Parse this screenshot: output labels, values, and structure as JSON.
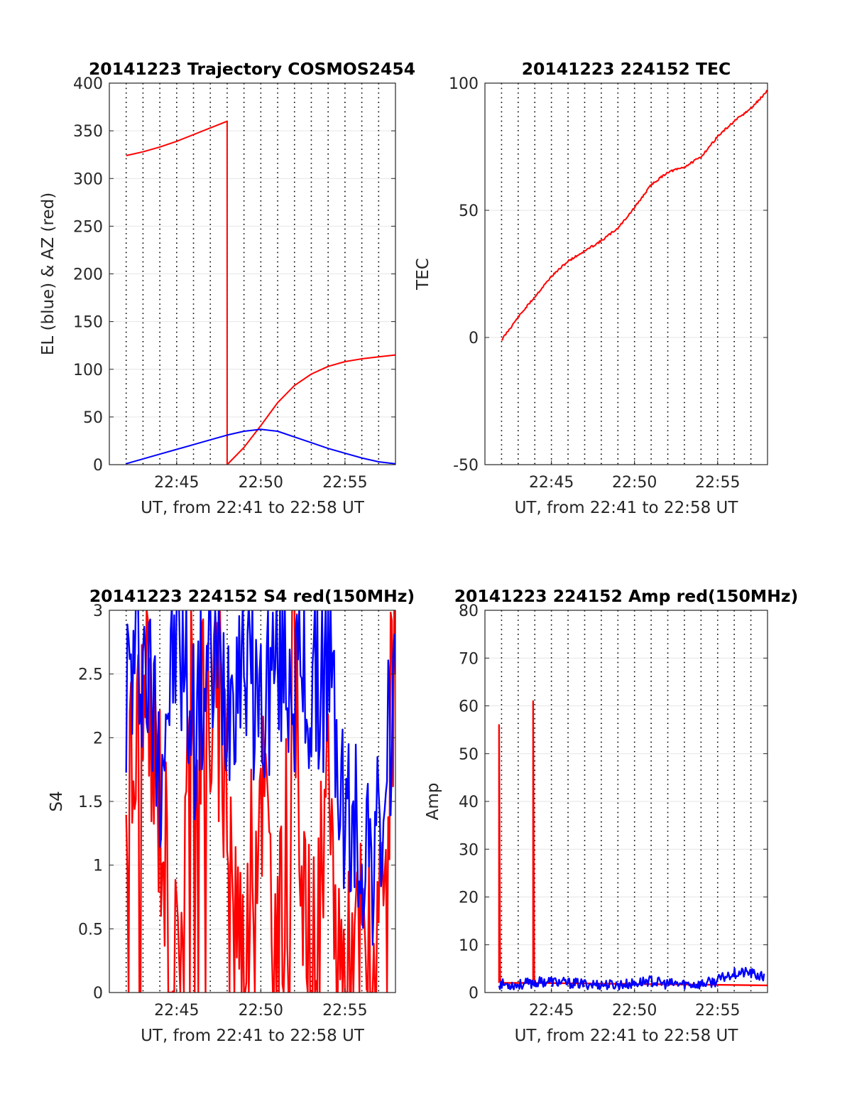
{
  "chart_data": [
    {
      "type": "line",
      "title": "20141223 Trajectory COSMOS2454",
      "xlabel": "UT, from 22:41 to 22:58 UT",
      "ylabel": "EL (blue) & AZ (red)",
      "xlim": [
        "22:41",
        "22:58"
      ],
      "xticks": [
        "22:45",
        "22:50",
        "22:55"
      ],
      "ylim": [
        0,
        400
      ],
      "yticks": [
        "0",
        "50",
        "100",
        "150",
        "200",
        "250",
        "300",
        "350",
        "400"
      ],
      "grid": true,
      "series": [
        {
          "color": "#ff0000",
          "x": [
            "22:42",
            "22:43",
            "22:44",
            "22:45",
            "22:46",
            "22:47",
            "22:48",
            "22:48",
            "22:49",
            "22:50",
            "22:51",
            "22:52",
            "22:53",
            "22:54",
            "22:55",
            "22:56",
            "22:57",
            "22:58"
          ],
          "y": [
            324,
            328,
            333,
            339,
            346,
            353,
            360,
            0,
            18,
            41,
            65,
            83,
            95,
            103,
            108,
            111,
            113,
            115
          ]
        },
        {
          "color": "#0000ff",
          "x": [
            "22:42",
            "22:43",
            "22:44",
            "22:45",
            "22:46",
            "22:47",
            "22:48",
            "22:49",
            "22:50",
            "22:51",
            "22:52",
            "22:53",
            "22:54",
            "22:55",
            "22:56",
            "22:57",
            "22:58"
          ],
          "y": [
            1,
            6,
            11,
            16,
            21,
            26,
            31,
            35,
            37,
            35,
            29,
            23,
            17,
            12,
            7,
            3,
            1
          ]
        }
      ]
    },
    {
      "type": "line",
      "title": "20141223 224152 TEC",
      "xlabel": "UT, from 22:41 to 22:58 UT",
      "ylabel": "TEC",
      "xlim": [
        "22:41",
        "22:58"
      ],
      "xticks": [
        "22:45",
        "22:50",
        "22:55"
      ],
      "ylim": [
        -50,
        100
      ],
      "yticks": [
        "-50",
        "0",
        "50",
        "100"
      ],
      "grid": true,
      "series": [
        {
          "color": "#ff0000",
          "x": [
            "22:42",
            "22:43",
            "22:44",
            "22:45",
            "22:46",
            "22:47",
            "22:48",
            "22:49",
            "22:50",
            "22:51",
            "22:52",
            "22:53",
            "22:54",
            "22:55",
            "22:56",
            "22:57",
            "22:58"
          ],
          "y": [
            -1,
            8,
            16,
            24,
            30,
            34,
            38,
            43,
            51,
            60,
            65,
            67,
            71,
            79,
            85,
            90,
            97
          ]
        }
      ]
    },
    {
      "type": "line",
      "title": "20141223 224152 S4 red(150MHz)",
      "xlabel": "UT, from 22:41 to 22:58 UT",
      "ylabel": "S4",
      "xlim": [
        "22:41",
        "22:58"
      ],
      "xticks": [
        "22:45",
        "22:50",
        "22:55"
      ],
      "ylim": [
        0,
        3
      ],
      "yticks": [
        "0",
        "0.5",
        "1",
        "1.5",
        "2",
        "2.5",
        "3"
      ],
      "grid": true,
      "series": [
        {
          "color": "#ff0000",
          "x": [
            "22:42",
            "22:43",
            "22:44",
            "22:45",
            "22:46",
            "22:47",
            "22:48",
            "22:49",
            "22:50",
            "22:51",
            "22:52",
            "22:53",
            "22:54",
            "22:55",
            "22:56",
            "22:57",
            "22:58"
          ],
          "y": [
            1.5,
            2.2,
            1.6,
            0,
            2.5,
            2.3,
            1.8,
            0,
            1.9,
            0,
            2.4,
            0,
            1.3,
            0,
            0.4,
            0,
            2.8
          ]
        },
        {
          "color": "#0000ff",
          "x": [
            "22:42",
            "22:43",
            "22:44",
            "22:45",
            "22:46",
            "22:47",
            "22:48",
            "22:49",
            "22:50",
            "22:51",
            "22:52",
            "22:53",
            "22:54",
            "22:55",
            "22:56",
            "22:57",
            "22:58"
          ],
          "y": [
            2.4,
            2.7,
            1.9,
            2.8,
            2.1,
            2.6,
            2.4,
            2.8,
            2.2,
            2.7,
            2.5,
            2.3,
            2.6,
            1.3,
            1.2,
            1.1,
            2.5
          ]
        }
      ]
    },
    {
      "type": "line",
      "title": "20141223 224152 Amp red(150MHz)",
      "xlabel": "UT, from 22:41 to 22:58 UT",
      "ylabel": "Amp",
      "xlim": [
        "22:41",
        "22:58"
      ],
      "xticks": [
        "22:45",
        "22:50",
        "22:55"
      ],
      "ylim": [
        0,
        80
      ],
      "yticks": [
        "0",
        "10",
        "20",
        "30",
        "40",
        "50",
        "60",
        "70",
        "80"
      ],
      "grid": true,
      "series": [
        {
          "color": "#ff0000",
          "x": [
            "22:42",
            "22:42",
            "22:42",
            "22:43",
            "22:44",
            "22:44",
            "22:44",
            "22:45",
            "22:50",
            "22:55",
            "22:58"
          ],
          "y": [
            2,
            56,
            2,
            2,
            2,
            61,
            2,
            2,
            1.5,
            1.5,
            1.5
          ]
        },
        {
          "color": "#0000ff",
          "x": [
            "22:42",
            "22:43",
            "22:44",
            "22:45",
            "22:46",
            "22:47",
            "22:48",
            "22:49",
            "22:50",
            "22:51",
            "22:52",
            "22:53",
            "22:54",
            "22:55",
            "22:56",
            "22:57",
            "22:58"
          ],
          "y": [
            1.8,
            1.6,
            2.0,
            2.4,
            2.0,
            1.8,
            1.7,
            1.6,
            1.8,
            2.5,
            1.8,
            1.8,
            1.7,
            2.3,
            4.0,
            4.2,
            3.0
          ]
        }
      ]
    }
  ]
}
